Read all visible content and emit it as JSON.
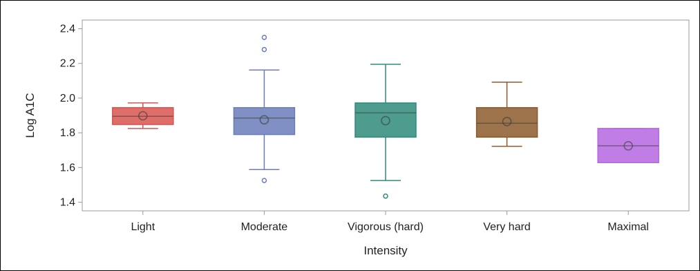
{
  "chart_data": {
    "type": "box",
    "title": "",
    "xlabel": "Intensity",
    "ylabel": "Log A1C",
    "ylim": [
      1.35,
      2.45
    ],
    "yticks": [
      1.4,
      1.6,
      1.8,
      2.0,
      2.2,
      2.4
    ],
    "ytick_labels": [
      "1.4",
      "1.6",
      "1.8",
      "2.0",
      "2.2",
      "2.4"
    ],
    "grid": false,
    "legend": "none",
    "categories": [
      "Light",
      "Moderate",
      "Vigorous (hard)",
      "Very hard",
      "Maximal"
    ],
    "boxes": [
      {
        "category": "Light",
        "whisker_low": 1.825,
        "q1": 1.848,
        "median": 1.895,
        "q3": 1.945,
        "whisker_high": 1.972,
        "mean": 1.898,
        "outliers": [],
        "color": "#d9534f"
      },
      {
        "category": "Moderate",
        "whisker_low": 1.588,
        "q1": 1.79,
        "median": 1.885,
        "q3": 1.945,
        "whisker_high": 2.162,
        "mean": 1.875,
        "outliers": [
          1.525,
          2.28,
          2.35
        ],
        "color": "#6a7cba"
      },
      {
        "category": "Vigorous (hard)",
        "whisker_low": 1.525,
        "q1": 1.775,
        "median": 1.915,
        "q3": 1.972,
        "whisker_high": 2.195,
        "mean": 1.87,
        "outliers": [
          1.435
        ],
        "color": "#2e8b7a"
      },
      {
        "category": "Very hard",
        "whisker_low": 1.722,
        "q1": 1.775,
        "median": 1.855,
        "q3": 1.945,
        "whisker_high": 2.092,
        "mean": 1.865,
        "outliers": [],
        "color": "#8b5a2b"
      },
      {
        "category": "Maximal",
        "whisker_low": 1.628,
        "q1": 1.628,
        "median": 1.725,
        "q3": 1.825,
        "whisker_high": 1.825,
        "mean": 1.725,
        "outliers": [],
        "color": "#b566e0"
      }
    ],
    "colors": {
      "axis": "#9a9a9a",
      "text": "#222222"
    }
  }
}
